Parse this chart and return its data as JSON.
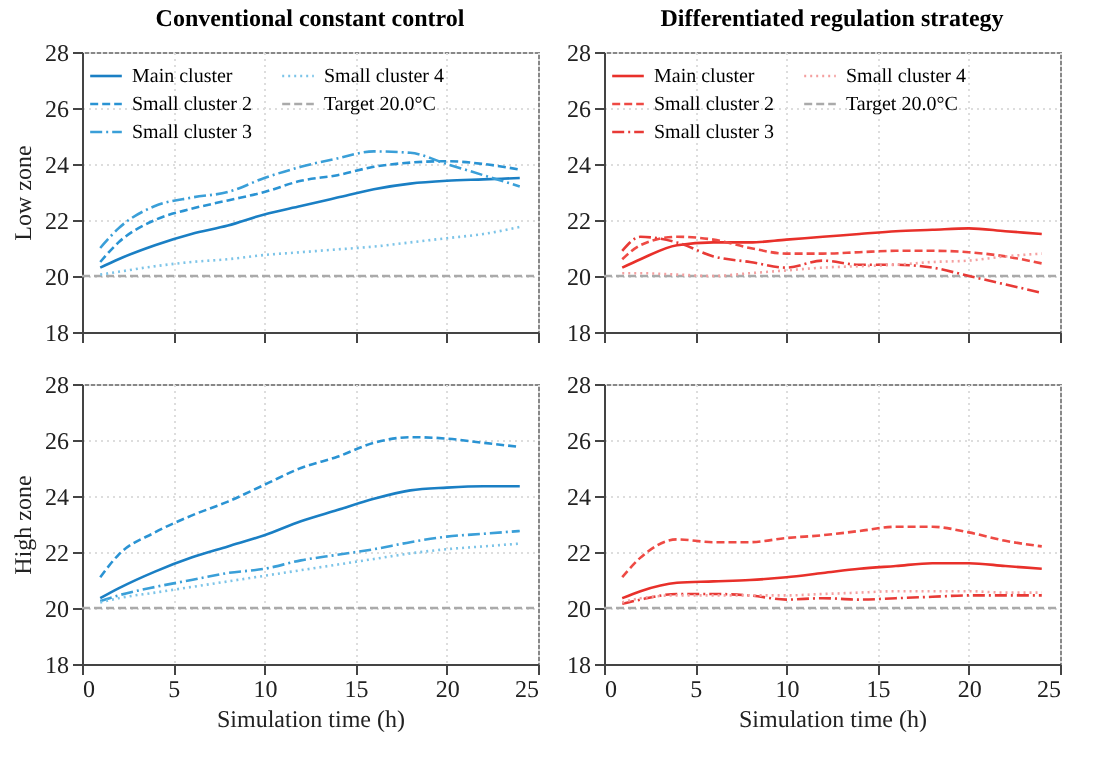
{
  "chart_data": [
    {
      "type": "line",
      "title": "Conventional constant control",
      "ylabel": "Low zone",
      "x": [
        1,
        2,
        4,
        6,
        8,
        10,
        12,
        14,
        16,
        18,
        20,
        22,
        24
      ],
      "xlim": [
        0,
        25
      ],
      "xticks": [
        0,
        5,
        10,
        15,
        20,
        25
      ],
      "ylim": [
        18,
        28
      ],
      "yticks": [
        18,
        20,
        22,
        24,
        26,
        28
      ],
      "grid": true,
      "legend": "top left",
      "tick_labels": "y",
      "ref_lines": [
        {
          "axis": "y",
          "value": 20,
          "label": "Target 20.0°C",
          "color": "#aaaaaa",
          "line_style": "dashed"
        }
      ],
      "series": [
        {
          "name": "Main cluster",
          "color": "#1a7fc4",
          "line_style": "solid",
          "values": [
            20.3,
            20.6,
            21.1,
            21.5,
            21.8,
            22.2,
            22.5,
            22.8,
            23.1,
            23.3,
            23.4,
            23.45,
            23.5
          ]
        },
        {
          "name": "Small cluster 2",
          "color": "#2a93d3",
          "line_style": "dashed",
          "values": [
            20.5,
            21.2,
            22.0,
            22.4,
            22.7,
            23.0,
            23.4,
            23.6,
            23.9,
            24.05,
            24.1,
            24.0,
            23.8
          ]
        },
        {
          "name": "Small cluster 3",
          "color": "#3a9fd8",
          "line_style": "dashdot",
          "values": [
            21.0,
            21.7,
            22.5,
            22.8,
            23.0,
            23.5,
            23.9,
            24.2,
            24.45,
            24.4,
            24.0,
            23.6,
            23.2
          ]
        },
        {
          "name": "Small cluster 4",
          "color": "#7cc4e8",
          "line_style": "dotted",
          "values": [
            20.05,
            20.15,
            20.35,
            20.5,
            20.6,
            20.75,
            20.85,
            20.95,
            21.05,
            21.2,
            21.35,
            21.5,
            21.75
          ]
        }
      ]
    },
    {
      "type": "line",
      "title": "Differentiated regulation strategy",
      "x": [
        1,
        2,
        4,
        6,
        8,
        10,
        12,
        14,
        16,
        18,
        20,
        22,
        24
      ],
      "xlim": [
        0,
        25
      ],
      "xticks": [
        0,
        5,
        10,
        15,
        20,
        25
      ],
      "ylim": [
        18,
        28
      ],
      "yticks": [
        18,
        20,
        22,
        24,
        26,
        28
      ],
      "grid": true,
      "legend": "top left",
      "tick_labels": "y",
      "ref_lines": [
        {
          "axis": "y",
          "value": 20,
          "label": "Target 20.0°C",
          "color": "#aaaaaa",
          "line_style": "dashed"
        }
      ],
      "series": [
        {
          "name": "Main cluster",
          "color": "#e8302a",
          "line_style": "solid",
          "values": [
            20.3,
            20.6,
            21.1,
            21.2,
            21.2,
            21.3,
            21.4,
            21.5,
            21.6,
            21.65,
            21.7,
            21.6,
            21.5
          ]
        },
        {
          "name": "Small cluster 2",
          "color": "#ee4a44",
          "line_style": "dashed",
          "values": [
            20.6,
            21.1,
            21.4,
            21.3,
            21.0,
            20.8,
            20.8,
            20.85,
            20.9,
            20.9,
            20.85,
            20.7,
            20.45
          ]
        },
        {
          "name": "Small cluster 3",
          "color": "#e83a36",
          "line_style": "dashdot",
          "values": [
            20.9,
            21.4,
            21.2,
            20.7,
            20.5,
            20.3,
            20.55,
            20.4,
            20.4,
            20.3,
            20.0,
            19.7,
            19.4
          ]
        },
        {
          "name": "Small cluster 4",
          "color": "#f4a0a0",
          "line_style": "dotted",
          "values": [
            20.1,
            20.1,
            20.05,
            20.0,
            20.1,
            20.2,
            20.3,
            20.35,
            20.4,
            20.5,
            20.55,
            20.7,
            20.8
          ]
        }
      ]
    },
    {
      "type": "line",
      "ylabel": "High zone",
      "xlabel": "Simulation time (h)",
      "x": [
        1,
        2,
        4,
        6,
        8,
        10,
        12,
        14,
        16,
        18,
        20,
        22,
        24
      ],
      "xlim": [
        0,
        25
      ],
      "xticks": [
        0,
        5,
        10,
        15,
        20,
        25
      ],
      "ylim": [
        18,
        28
      ],
      "yticks": [
        18,
        20,
        22,
        24,
        26,
        28
      ],
      "grid": true,
      "ref_lines": [
        {
          "axis": "y",
          "value": 20,
          "color": "#aaaaaa",
          "line_style": "dashed"
        }
      ],
      "series": [
        {
          "color": "#1a7fc4",
          "line_style": "solid",
          "values": [
            20.35,
            20.7,
            21.3,
            21.8,
            22.2,
            22.6,
            23.1,
            23.5,
            23.9,
            24.2,
            24.3,
            24.35,
            24.35
          ]
        },
        {
          "color": "#2a93d3",
          "line_style": "dashed",
          "values": [
            21.1,
            21.9,
            22.7,
            23.3,
            23.8,
            24.4,
            25.0,
            25.4,
            25.9,
            26.1,
            26.05,
            25.9,
            25.75
          ]
        },
        {
          "color": "#3a9fd8",
          "line_style": "dashdot",
          "values": [
            20.25,
            20.45,
            20.75,
            21.0,
            21.25,
            21.4,
            21.7,
            21.9,
            22.1,
            22.35,
            22.55,
            22.65,
            22.75
          ]
        },
        {
          "color": "#7cc4e8",
          "line_style": "dotted",
          "values": [
            20.2,
            20.35,
            20.55,
            20.75,
            20.95,
            21.15,
            21.35,
            21.55,
            21.75,
            21.95,
            22.1,
            22.2,
            22.3
          ]
        }
      ]
    },
    {
      "type": "line",
      "xlabel": "Simulation time (h)",
      "x": [
        1,
        2,
        4,
        6,
        8,
        10,
        12,
        14,
        16,
        18,
        20,
        22,
        24
      ],
      "xlim": [
        0,
        25
      ],
      "xticks": [
        0,
        5,
        10,
        15,
        20,
        25
      ],
      "ylim": [
        18,
        28
      ],
      "yticks": [
        18,
        20,
        22,
        24,
        26,
        28
      ],
      "grid": true,
      "ref_lines": [
        {
          "axis": "y",
          "value": 20,
          "color": "#aaaaaa",
          "line_style": "dashed"
        }
      ],
      "series": [
        {
          "color": "#e8302a",
          "line_style": "solid",
          "values": [
            20.35,
            20.6,
            20.9,
            20.95,
            21.0,
            21.1,
            21.25,
            21.4,
            21.5,
            21.6,
            21.6,
            21.5,
            21.4
          ]
        },
        {
          "color": "#ee4a44",
          "line_style": "dashed",
          "values": [
            21.1,
            21.8,
            22.45,
            22.35,
            22.35,
            22.5,
            22.6,
            22.75,
            22.9,
            22.9,
            22.7,
            22.4,
            22.2
          ]
        },
        {
          "color": "#e83a36",
          "line_style": "dashdot",
          "values": [
            20.15,
            20.3,
            20.5,
            20.5,
            20.45,
            20.3,
            20.35,
            20.3,
            20.35,
            20.4,
            20.45,
            20.45,
            20.45
          ]
        },
        {
          "color": "#f4a0a0",
          "line_style": "dotted",
          "values": [
            20.2,
            20.35,
            20.45,
            20.45,
            20.45,
            20.45,
            20.5,
            20.55,
            20.6,
            20.6,
            20.6,
            20.55,
            20.55
          ]
        }
      ]
    }
  ]
}
